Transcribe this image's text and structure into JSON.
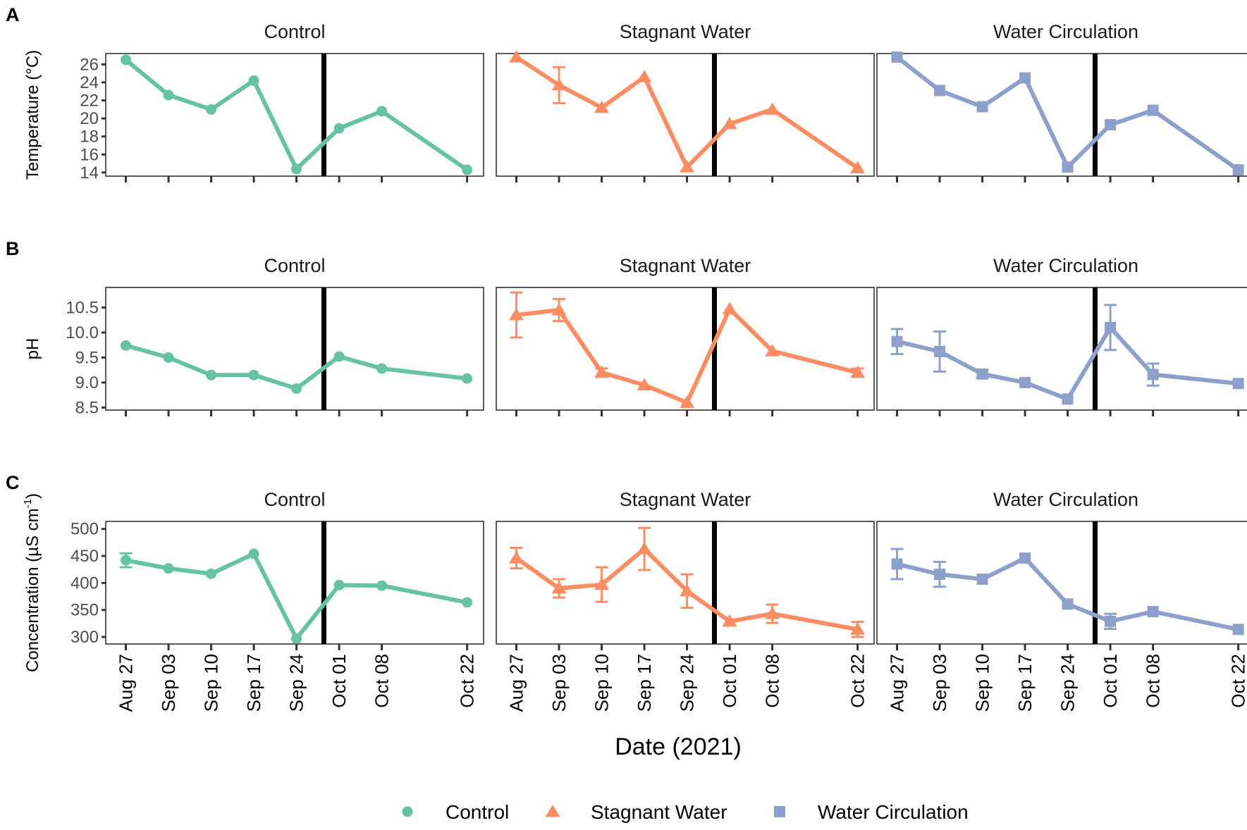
{
  "chart_data": {
    "type": "line",
    "xlabel": "Date (2021)",
    "x_ticks": [
      "Aug 27",
      "Sep 03",
      "Sep 10",
      "Sep 17",
      "Sep 24",
      "Oct 01",
      "Oct 08",
      "Oct 22"
    ],
    "x_days": [
      0,
      7,
      14,
      21,
      28,
      35,
      42,
      56
    ],
    "x_range": [
      -3.3,
      58.7
    ],
    "vertical_line_day": 32.5,
    "facets": [
      "Control",
      "Stagnant Water",
      "Water Circulation"
    ],
    "series_styles": [
      {
        "name": "Control",
        "color": "#66C2A5",
        "marker": "circle"
      },
      {
        "name": "Stagnant Water",
        "color": "#FC8D62",
        "marker": "triangle"
      },
      {
        "name": "Water Circulation",
        "color": "#8DA0CB",
        "marker": "square"
      }
    ],
    "legend": {
      "position": "bottom",
      "entries": [
        "Control",
        "Stagnant Water",
        "Water Circulation"
      ]
    },
    "panels": [
      {
        "letter": "A",
        "ylabel": "Temperature (°C)",
        "ylim": [
          13.6,
          27.2
        ],
        "yticks": [
          14,
          16,
          18,
          20,
          22,
          24,
          26
        ],
        "ytick_labels": [
          "14",
          "16",
          "18",
          "20",
          "22",
          "24",
          "26"
        ],
        "series": [
          {
            "name": "Control",
            "values": [
              26.5,
              22.6,
              21.0,
              24.2,
              14.4,
              18.9,
              20.8,
              14.3
            ],
            "errors": [
              0,
              0,
              0,
              0,
              0,
              0,
              0,
              0
            ]
          },
          {
            "name": "Stagnant Water",
            "values": [
              26.8,
              23.7,
              21.2,
              24.6,
              14.6,
              19.4,
              21.0,
              14.5
            ],
            "errors": [
              0,
              2.0,
              0,
              0,
              0,
              0,
              0,
              0
            ]
          },
          {
            "name": "Water Circulation",
            "values": [
              26.8,
              23.1,
              21.3,
              24.5,
              14.6,
              19.3,
              20.9,
              14.3
            ],
            "errors": [
              0,
              0,
              0,
              0,
              0,
              0,
              0,
              0
            ]
          }
        ]
      },
      {
        "letter": "B",
        "ylabel": "pH",
        "ylim": [
          8.45,
          10.9
        ],
        "yticks": [
          8.5,
          9.0,
          9.5,
          10.0,
          10.5
        ],
        "ytick_labels": [
          "8.5",
          "9.0",
          "9.5",
          "10.0",
          "10.5"
        ],
        "series": [
          {
            "name": "Control",
            "values": [
              9.74,
              9.5,
              9.15,
              9.15,
              8.88,
              9.52,
              9.28,
              9.08
            ],
            "errors": [
              0,
              0,
              0,
              0,
              0,
              0,
              0,
              0
            ]
          },
          {
            "name": "Stagnant Water",
            "values": [
              10.35,
              10.45,
              9.2,
              8.95,
              8.6,
              10.47,
              9.63,
              9.2
            ],
            "errors": [
              0.45,
              0.22,
              0.08,
              0,
              0,
              0,
              0,
              0.08
            ]
          },
          {
            "name": "Water Circulation",
            "values": [
              9.82,
              9.62,
              9.17,
              9.0,
              8.67,
              10.1,
              9.16,
              8.98
            ],
            "errors": [
              0.25,
              0.4,
              0.08,
              0,
              0,
              0.45,
              0.22,
              0
            ]
          }
        ]
      },
      {
        "letter": "C",
        "ylabel": "Concentration (µS cm",
        "ylabel_superscript": "-1",
        "ylabel_suffix": ")",
        "ylim": [
          287,
          514
        ],
        "yticks": [
          300,
          350,
          400,
          450,
          500
        ],
        "ytick_labels": [
          "300",
          "350",
          "400",
          "450",
          "500"
        ],
        "series": [
          {
            "name": "Control",
            "values": [
              442,
              427,
              417,
              454,
              297,
              396,
              395,
              364
            ],
            "errors": [
              13,
              0,
              0,
              0,
              0,
              0,
              0,
              0
            ]
          },
          {
            "name": "Stagnant Water",
            "values": [
              446,
              390,
              397,
              463,
              385,
              329,
              343,
              314
            ],
            "errors": [
              19,
              17,
              32,
              39,
              31,
              0,
              17,
              14
            ]
          },
          {
            "name": "Water Circulation",
            "values": [
              435,
              416,
              407,
              446,
              361,
              329,
              347,
              314
            ],
            "errors": [
              28,
              23,
              0,
              0,
              0,
              14,
              0,
              0
            ]
          }
        ]
      }
    ]
  }
}
